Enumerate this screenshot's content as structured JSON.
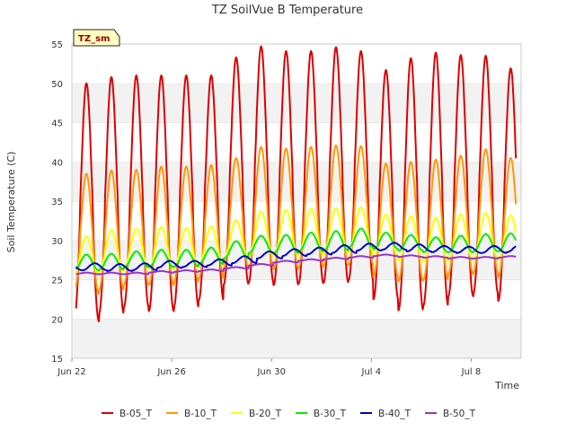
{
  "chart_data": {
    "type": "line",
    "title": "TZ SoilVue B Temperature",
    "xlabel": "Time",
    "ylabel": "Soil Temperature (C)",
    "xlim": [
      "2024-06-22",
      "2024-07-10"
    ],
    "ylim": [
      15,
      55
    ],
    "yticks": [
      15,
      20,
      25,
      30,
      35,
      40,
      45,
      50,
      55
    ],
    "xticks": [
      {
        "date": "2024-06-22",
        "label": "Jun 22"
      },
      {
        "date": "2024-06-26",
        "label": "Jun 26"
      },
      {
        "date": "2024-06-30",
        "label": "Jun 30"
      },
      {
        "date": "2024-07-04",
        "label": "Jul 4"
      },
      {
        "date": "2024-07-08",
        "label": "Jul 8"
      }
    ],
    "grid": "horizontal bands",
    "legend_position": "bottom",
    "station_label": "TZ_sm",
    "dates": [
      "2024-06-22",
      "2024-06-23",
      "2024-06-24",
      "2024-06-25",
      "2024-06-26",
      "2024-06-27",
      "2024-06-28",
      "2024-06-29",
      "2024-06-30",
      "2024-07-01",
      "2024-07-02",
      "2024-07-03",
      "2024-07-04",
      "2024-07-05",
      "2024-07-06",
      "2024-07-07",
      "2024-07-08",
      "2024-07-09"
    ],
    "peak_hour": 14,
    "start": "2024-06-22 04:00",
    "end": "2024-07-09 19:00",
    "series": [
      {
        "name": "B-05_T",
        "color": "#dd0000",
        "width": 2,
        "daily_max": [
          50.0,
          50.8,
          51.0,
          51.0,
          51.0,
          51.0,
          53.3,
          54.7,
          54.1,
          54.1,
          54.6,
          54.1,
          51.7,
          53.2,
          53.9,
          53.6,
          53.5,
          51.9
        ],
        "daily_min": [
          19.7,
          20.7,
          21.5,
          21.0,
          21.5,
          22.4,
          24.4,
          24.6,
          24.3,
          24.5,
          24.6,
          24.9,
          22.5,
          21.1,
          21.7,
          22.9,
          23.2,
          22.3
        ]
      },
      {
        "name": "B-10_T",
        "color": "#ff9900",
        "width": 2,
        "daily_max": [
          38.5,
          38.9,
          39.0,
          39.4,
          39.4,
          39.6,
          40.5,
          41.9,
          41.7,
          41.9,
          42.1,
          42.0,
          39.8,
          40.0,
          40.3,
          40.8,
          41.6,
          40.5
        ],
        "daily_min": [
          23.2,
          23.7,
          24.4,
          24.3,
          24.7,
          25.2,
          26.5,
          26.5,
          26.3,
          26.6,
          26.8,
          26.9,
          25.4,
          24.8,
          25.0,
          25.7,
          25.9,
          25.3
        ]
      },
      {
        "name": "B-20_T",
        "color": "#ffff00",
        "width": 2,
        "daily_max": [
          30.5,
          31.3,
          31.5,
          31.7,
          31.6,
          31.8,
          32.6,
          33.7,
          33.9,
          34.0,
          34.1,
          34.2,
          33.3,
          33.1,
          32.9,
          33.3,
          33.5,
          33.2
        ],
        "daily_min": [
          25.6,
          26.1,
          26.5,
          26.4,
          26.6,
          26.9,
          27.7,
          28.1,
          28.0,
          28.2,
          28.4,
          28.6,
          27.9,
          27.4,
          27.3,
          27.5,
          27.6,
          27.5
        ]
      },
      {
        "name": "B-30_T",
        "color": "#00ee00",
        "width": 2,
        "daily_max": [
          28.2,
          28.3,
          28.6,
          28.8,
          28.8,
          29.1,
          29.9,
          30.6,
          30.7,
          31.0,
          31.2,
          31.5,
          31.0,
          30.7,
          30.4,
          30.6,
          30.8,
          30.9
        ],
        "daily_min": [
          26.2,
          26.3,
          26.6,
          26.6,
          26.7,
          27.0,
          27.7,
          28.4,
          28.4,
          28.6,
          28.7,
          29.1,
          28.9,
          28.7,
          28.5,
          28.5,
          28.6,
          28.6
        ]
      },
      {
        "name": "B-40_T",
        "color": "#0000cc",
        "width": 2,
        "daily_max": [
          27.1,
          27.0,
          27.1,
          27.4,
          27.4,
          27.6,
          28.0,
          28.6,
          28.9,
          29.1,
          29.4,
          29.6,
          29.7,
          29.5,
          29.3,
          29.2,
          29.3,
          29.4
        ],
        "daily_min": [
          26.2,
          26.1,
          26.2,
          26.5,
          26.6,
          26.8,
          27.1,
          27.7,
          28.0,
          28.2,
          28.4,
          28.7,
          28.8,
          28.6,
          28.5,
          28.4,
          28.4,
          28.5
        ],
        "note_lag": 8
      },
      {
        "name": "B-50_T",
        "color": "#9933cc",
        "width": 2,
        "daily_max": [
          25.9,
          25.9,
          25.9,
          26.1,
          26.2,
          26.3,
          26.6,
          27.0,
          27.4,
          27.6,
          27.8,
          28.0,
          28.2,
          28.1,
          28.0,
          27.9,
          27.9,
          28.0
        ],
        "daily_min": [
          25.7,
          25.7,
          25.7,
          25.9,
          26.0,
          26.1,
          26.4,
          26.8,
          27.2,
          27.4,
          27.6,
          27.8,
          28.0,
          27.9,
          27.8,
          27.7,
          27.7,
          27.8
        ]
      }
    ]
  }
}
